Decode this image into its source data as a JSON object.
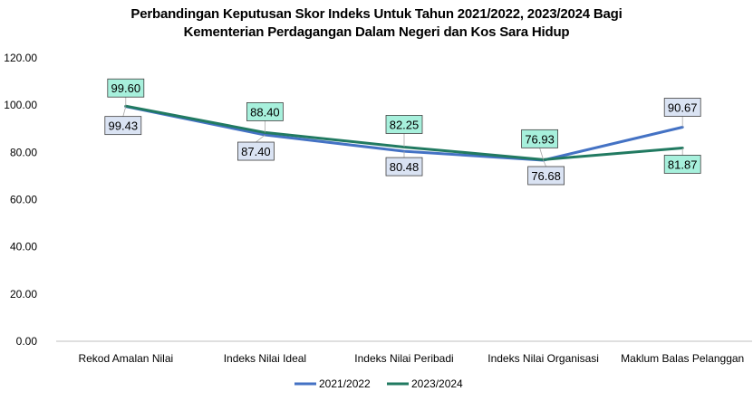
{
  "chart_data": {
    "type": "line",
    "title": "Perbandingan Keputusan Skor Indeks Untuk Tahun 2021/2022, 2023/2024 Bagi",
    "subtitle": "Kementerian Perdagangan Dalam Negeri dan Kos Sara Hidup",
    "categories": [
      "Rekod Amalan Nilai",
      "Indeks Nilai Ideal",
      "Indeks Nilai Peribadi",
      "Indeks Nilai Organisasi",
      "Maklum Balas Pelanggan"
    ],
    "series": [
      {
        "name": "2021/2022",
        "color": "#4472C4",
        "label_fill": "#DAE3F3",
        "values": [
          99.43,
          87.4,
          80.48,
          76.68,
          90.67
        ],
        "labels": [
          "99.43",
          "87.40",
          "80.48",
          "76.68",
          "90.67"
        ]
      },
      {
        "name": "2023/2024",
        "color": "#217A61",
        "label_fill": "#A7F0DC",
        "values": [
          99.6,
          88.4,
          82.25,
          76.93,
          81.87
        ],
        "labels": [
          "99.60",
          "88.40",
          "82.25",
          "76.93",
          "81.87"
        ]
      }
    ],
    "yticks": [
      "0.00",
      "20.00",
      "40.00",
      "60.00",
      "80.00",
      "100.00",
      "120.00"
    ],
    "ylim": [
      0,
      120
    ],
    "grid": false,
    "legend": "bottom"
  }
}
